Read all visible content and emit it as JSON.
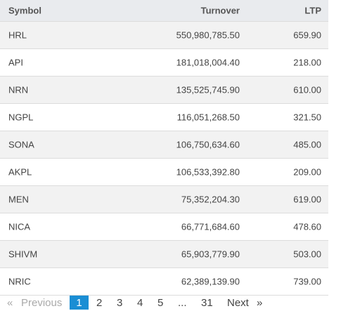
{
  "table": {
    "headers": [
      "Symbol",
      "Turnover",
      "LTP"
    ],
    "rows": [
      [
        "HRL",
        "550,980,785.50",
        "659.90"
      ],
      [
        "API",
        "181,018,004.40",
        "218.00"
      ],
      [
        "NRN",
        "135,525,745.90",
        "610.00"
      ],
      [
        "NGPL",
        "116,051,268.50",
        "321.50"
      ],
      [
        "SONA",
        "106,750,634.60",
        "485.00"
      ],
      [
        "AKPL",
        "106,533,392.80",
        "209.00"
      ],
      [
        "MEN",
        "75,352,204.30",
        "619.00"
      ],
      [
        "NICA",
        "66,771,684.60",
        "478.60"
      ],
      [
        "SHIVM",
        "65,903,779.90",
        "503.00"
      ],
      [
        "NRIC",
        "62,389,139.90",
        "739.00"
      ]
    ]
  },
  "pagination": {
    "prev_icon": "«",
    "previous": "Previous",
    "pages": [
      "1",
      "2",
      "3",
      "4",
      "5",
      "...",
      "31"
    ],
    "next": "Next",
    "next_icon": "»"
  }
}
